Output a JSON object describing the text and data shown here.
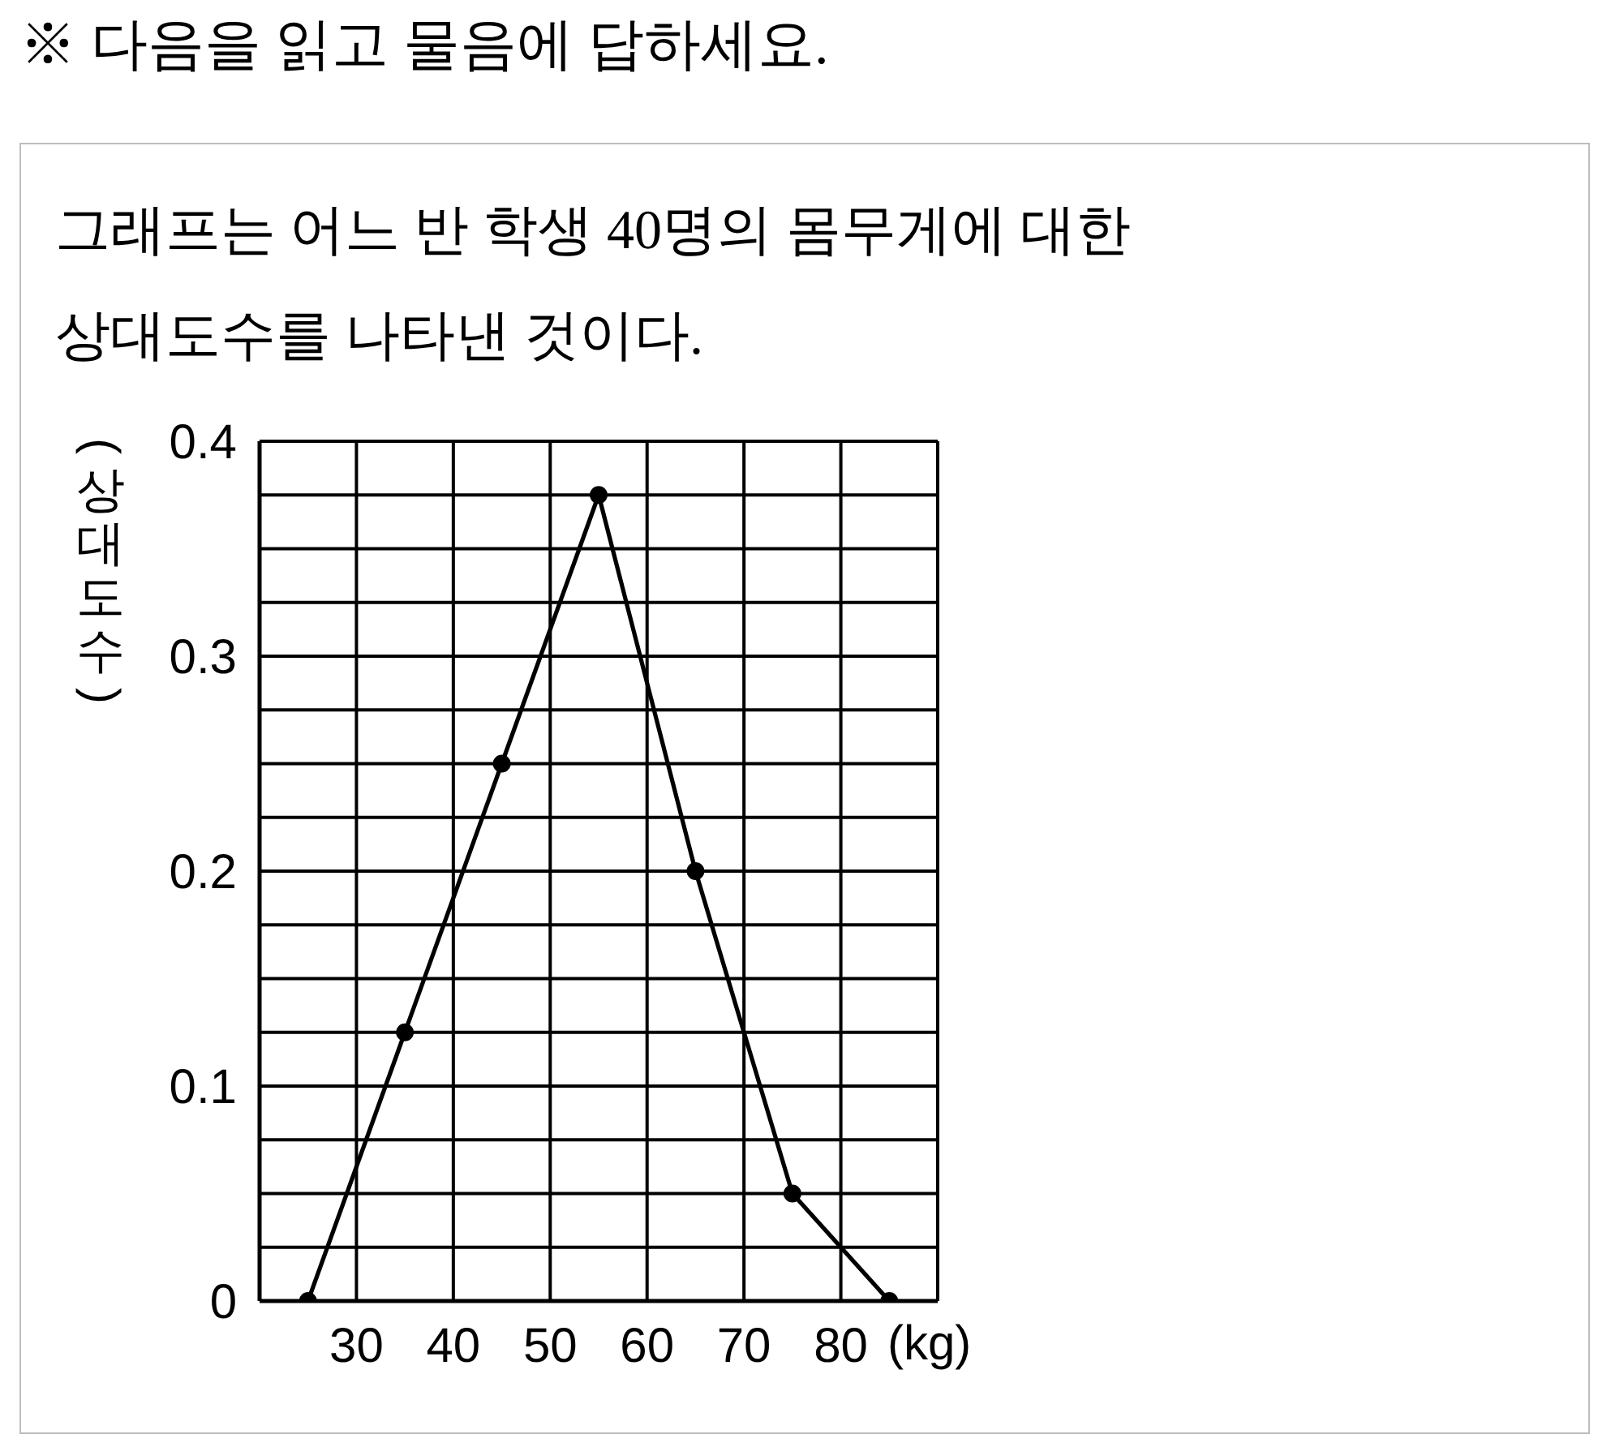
{
  "chart_data": {
    "type": "line",
    "title": "※ 다음을 읽고 물음에 답하세요.",
    "subtitle": "그래프는 어느 반 학생 40명의 몸무게에 대한 상대도수를 나타낸 것이다.",
    "xlabel": "(kg)",
    "ylabel": "(상대도수)",
    "x": [
      25,
      35,
      45,
      55,
      65,
      75,
      85
    ],
    "series": [
      {
        "color": "#000000",
        "values": [
          0,
          0.125,
          0.25,
          0.375,
          0.2,
          0.05,
          0
        ]
      }
    ],
    "xlim": [
      20,
      90
    ],
    "xticks": [
      {
        "value": 20,
        "label": null
      },
      30,
      40,
      50,
      60,
      70,
      80,
      {
        "value": 90,
        "label": null
      }
    ],
    "ylim": [
      0,
      0.4
    ],
    "yticks": [
      0,
      {
        "value": 0.025,
        "label": null
      },
      {
        "value": 0.05,
        "label": null
      },
      {
        "value": 0.075,
        "label": null
      },
      0.1,
      {
        "value": 0.125,
        "label": null
      },
      {
        "value": 0.15,
        "label": null
      },
      {
        "value": 0.175,
        "label": null
      },
      0.2,
      {
        "value": 0.225,
        "label": null
      },
      {
        "value": 0.25,
        "label": null
      },
      {
        "value": 0.275,
        "label": null
      },
      0.3,
      {
        "value": 0.325,
        "label": null
      },
      {
        "value": 0.35,
        "label": null
      },
      {
        "value": 0.375,
        "label": null
      },
      0.4
    ],
    "grid": true,
    "marker": "circle",
    "line_style": "solid"
  }
}
